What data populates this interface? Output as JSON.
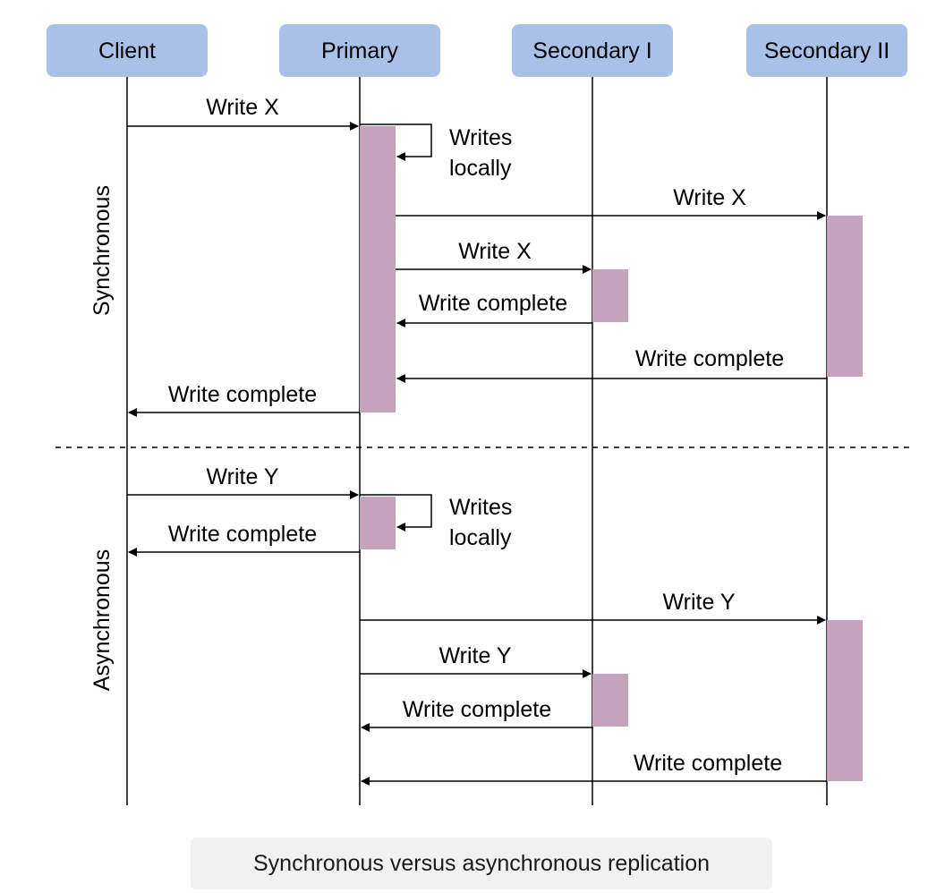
{
  "participants": [
    "Client",
    "Primary",
    "Secondary I",
    "Secondary II"
  ],
  "sections": {
    "synchronous": "Synchronous",
    "asynchronous": "Asynchronous"
  },
  "messages": {
    "sync": {
      "client_to_primary": "Write X",
      "self_note_line1": "Writes",
      "self_note_line2": "locally",
      "primary_to_secondary2": "Write X",
      "primary_to_secondary1": "Write X",
      "secondary1_ack": "Write complete",
      "secondary2_ack": "Write complete",
      "primary_ack": "Write complete"
    },
    "async": {
      "client_to_primary": "Write Y",
      "self_note_line1": "Writes",
      "self_note_line2": "locally",
      "primary_ack": "Write complete",
      "primary_to_secondary2": "Write Y",
      "primary_to_secondary1": "Write Y",
      "secondary1_ack": "Write complete",
      "secondary2_ack": "Write complete"
    }
  },
  "caption": "Synchronous versus asynchronous replication",
  "colors": {
    "participant_box": "#a9c1e8",
    "activation_bar": "#c5a3bd",
    "line": "#000000",
    "caption_bg": "#f1f1f1"
  }
}
